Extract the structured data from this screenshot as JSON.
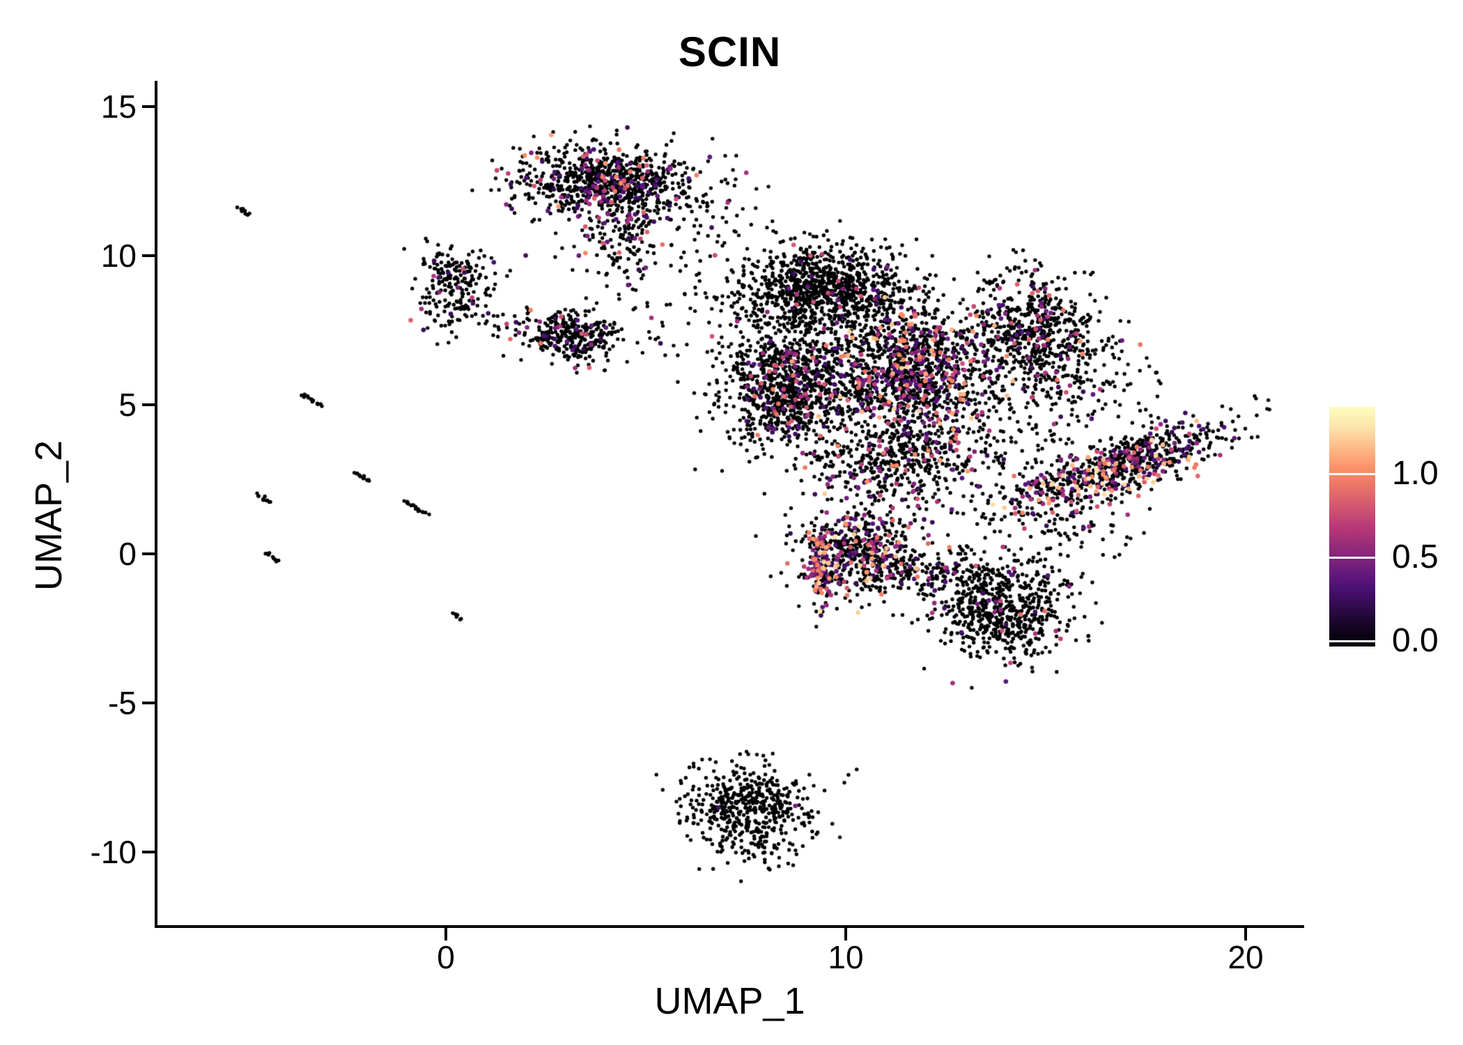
{
  "title": "SCIN",
  "chart_data": {
    "type": "scatter",
    "title": "SCIN",
    "xlabel": "UMAP_1",
    "ylabel": "UMAP_2",
    "xlim": [
      -7.1,
      21.2
    ],
    "ylim": [
      -12.4,
      15.6
    ],
    "xticks": [
      0,
      10,
      20
    ],
    "yticks": [
      15,
      10,
      5,
      0,
      -5,
      -10
    ],
    "xtick_labels": [
      "0",
      "10",
      "20"
    ],
    "ytick_labels": [
      "15",
      "10",
      "5",
      "0",
      "-5",
      "-10"
    ],
    "grid": false,
    "background": "#ffffff",
    "point_color_zero": "#000004",
    "point_radius": 2.7,
    "point_radius_expressed": 3.3,
    "legend": {
      "position": "right",
      "ticks": [
        "1.0",
        "0.5",
        "0.0"
      ],
      "tick_values": [
        1.0,
        0.5,
        0.0
      ],
      "max_value": 1.35,
      "colormap": "magma",
      "color_stops": [
        "#000004",
        "#51127c",
        "#b73779",
        "#fc8961",
        "#fcfdbf"
      ]
    },
    "clusters": [
      {
        "name": "top-cluster-main",
        "cx": 4.0,
        "cy": 12.45,
        "sx": 1.05,
        "sy": 0.62,
        "rot": -5,
        "n": 850,
        "expr_frac": 0.17,
        "expr_max": 1.1
      },
      {
        "name": "top-cluster-tail",
        "cx": 4.3,
        "cy": 10.5,
        "sx": 0.55,
        "sy": 0.8,
        "rot": 0,
        "n": 130,
        "expr_frac": 0.12,
        "expr_max": 1.0
      },
      {
        "name": "top-cluster-right-sparse",
        "cx": 6.4,
        "cy": 11.6,
        "sx": 0.75,
        "sy": 0.85,
        "rot": 0,
        "n": 80,
        "expr_frac": 0.05,
        "expr_max": 0.9
      },
      {
        "name": "upper-left-blob-a",
        "cx": 0.25,
        "cy": 9.45,
        "sx": 0.52,
        "sy": 0.42,
        "rot": 0,
        "n": 125,
        "expr_frac": 0.05,
        "expr_max": 0.9
      },
      {
        "name": "upper-left-blob-b",
        "cx": 0.35,
        "cy": 8.25,
        "sx": 0.48,
        "sy": 0.5,
        "rot": 0,
        "n": 110,
        "expr_frac": 0.06,
        "expr_max": 0.9
      },
      {
        "name": "mid-left-cluster",
        "cx": 3.1,
        "cy": 7.3,
        "sx": 0.62,
        "sy": 0.42,
        "rot": -15,
        "n": 330,
        "expr_frac": 0.08,
        "expr_max": 1.0
      },
      {
        "name": "central-top-lobe",
        "cx": 9.4,
        "cy": 8.9,
        "sx": 1.05,
        "sy": 0.72,
        "rot": 0,
        "n": 1050,
        "expr_frac": 0.045,
        "expr_max": 1.0
      },
      {
        "name": "central-left-lobe",
        "cx": 8.5,
        "cy": 5.6,
        "sx": 0.8,
        "sy": 1.05,
        "rot": 0,
        "n": 950,
        "expr_frac": 0.1,
        "expr_max": 1.0
      },
      {
        "name": "central-mid-lobe",
        "cx": 11.6,
        "cy": 6.1,
        "sx": 1.05,
        "sy": 1.05,
        "rot": 0,
        "n": 1250,
        "expr_frac": 0.21,
        "expr_max": 1.25
      },
      {
        "name": "central-right-arm",
        "cx": 14.7,
        "cy": 7.5,
        "sx": 0.75,
        "sy": 1.05,
        "rot": 20,
        "n": 650,
        "expr_frac": 0.1,
        "expr_max": 1.1
      },
      {
        "name": "central-lower-lobe",
        "cx": 11.4,
        "cy": 3.1,
        "sx": 1.1,
        "sy": 0.75,
        "rot": 0,
        "n": 480,
        "expr_frac": 0.12,
        "expr_max": 1.1
      },
      {
        "name": "right-diagonal-band",
        "cx": 16.7,
        "cy": 2.85,
        "sx": 1.55,
        "sy": 0.45,
        "rot": 27,
        "n": 780,
        "expr_frac": 0.28,
        "expr_max": 1.3
      },
      {
        "name": "lower-mid-left-cluster",
        "cx": 10.35,
        "cy": 0.0,
        "sx": 0.78,
        "sy": 0.8,
        "rot": 0,
        "n": 580,
        "expr_frac": 0.26,
        "expr_max": 1.3
      },
      {
        "name": "lower-mid-left-edge",
        "cx": 9.35,
        "cy": -0.5,
        "sx": 0.13,
        "sy": 0.6,
        "rot": 0,
        "n": 140,
        "expr_frac": 0.45,
        "expr_max": 1.3
      },
      {
        "name": "lower-mid-right-cluster",
        "cx": 13.95,
        "cy": -1.8,
        "sx": 0.78,
        "sy": 0.85,
        "rot": 0,
        "n": 680,
        "expr_frac": 0.05,
        "expr_max": 1.0
      },
      {
        "name": "bottom-cluster",
        "cx": 7.6,
        "cy": -8.6,
        "sx": 0.85,
        "sy": 0.78,
        "rot": -10,
        "n": 540,
        "expr_frac": 0.004,
        "expr_max": 0.9
      },
      {
        "name": "gap-mid-sparse",
        "cx": 13.9,
        "cy": 4.0,
        "sx": 1.0,
        "sy": 0.7,
        "rot": 0,
        "n": 110,
        "expr_frac": 0.12,
        "expr_max": 1.1
      },
      {
        "name": "right-sparse",
        "cx": 16.0,
        "cy": 5.9,
        "sx": 0.9,
        "sy": 0.9,
        "rot": 0,
        "n": 90,
        "expr_frac": 0.12,
        "expr_max": 1.0
      },
      {
        "name": "left-sparse",
        "cx": 5.7,
        "cy": 8.2,
        "sx": 0.9,
        "sy": 0.9,
        "rot": 0,
        "n": 45,
        "expr_frac": 0.08,
        "expr_max": 0.9
      },
      {
        "name": "bridge-cluster",
        "cx": 12.3,
        "cy": -0.6,
        "sx": 0.7,
        "sy": 0.5,
        "rot": 0,
        "n": 120,
        "expr_frac": 0.12,
        "expr_max": 1.0
      },
      {
        "name": "right-low-sparse",
        "cx": 15.9,
        "cy": 0.8,
        "sx": 0.9,
        "sy": 0.45,
        "rot": 0,
        "n": 50,
        "expr_frac": 0.1,
        "expr_max": 1.0
      }
    ],
    "streaks": [
      {
        "name": "streak-1",
        "cx": -5.05,
        "cy": 11.5,
        "len": 0.35,
        "n": 8,
        "angle": -38
      },
      {
        "name": "streak-2",
        "cx": -3.35,
        "cy": 5.15,
        "len": 0.6,
        "n": 14,
        "angle": -38
      },
      {
        "name": "streak-3",
        "cx": -2.1,
        "cy": 2.6,
        "len": 0.5,
        "n": 12,
        "angle": -38
      },
      {
        "name": "streak-4",
        "cx": -4.55,
        "cy": 1.85,
        "len": 0.45,
        "n": 10,
        "angle": -38
      },
      {
        "name": "streak-5",
        "cx": -0.75,
        "cy": 1.55,
        "len": 0.7,
        "n": 16,
        "angle": -38
      },
      {
        "name": "streak-6",
        "cx": -4.35,
        "cy": -0.1,
        "len": 0.4,
        "n": 9,
        "angle": -38
      },
      {
        "name": "streak-7",
        "cx": 0.3,
        "cy": -2.1,
        "len": 0.25,
        "n": 6,
        "angle": -38
      }
    ]
  }
}
